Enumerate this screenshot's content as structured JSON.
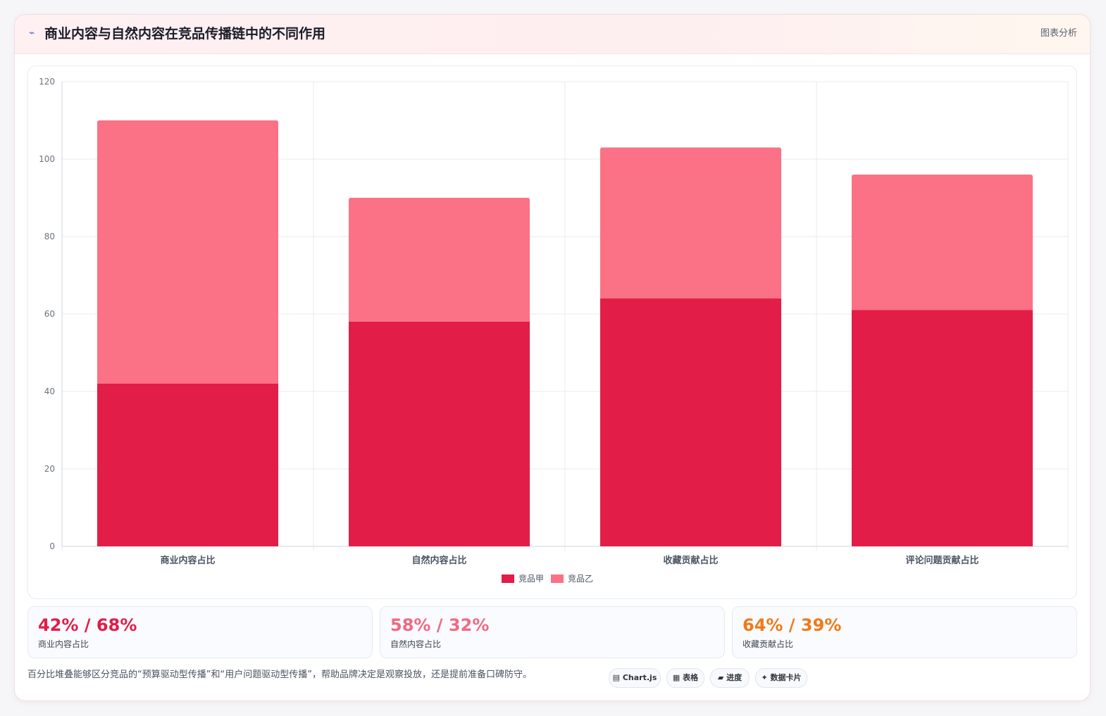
{
  "header": {
    "icon": "chart-line-icon",
    "title": "商业内容与自然内容在竞品传播链中的不同作用",
    "right_label": "图表分析"
  },
  "chart_data": {
    "type": "bar",
    "stacked": true,
    "categories": [
      "商业内容占比",
      "自然内容占比",
      "收藏贡献占比",
      "评论问题贡献占比"
    ],
    "series": [
      {
        "name": "竞品甲",
        "color": "#e11d48",
        "values": [
          42,
          58,
          64,
          61
        ]
      },
      {
        "name": "竞品乙",
        "color": "#fb7185",
        "values": [
          68,
          32,
          39,
          35
        ]
      }
    ],
    "ylim": [
      0,
      120
    ],
    "yticks": [
      0,
      20,
      40,
      60,
      80,
      100,
      120
    ],
    "grid": true,
    "legend": "bottom"
  },
  "stats": [
    {
      "value": "42% / 68%",
      "label": "商业内容占比",
      "color": "#e11d48"
    },
    {
      "value": "58% / 32%",
      "label": "自然内容占比",
      "color": "#f06a82"
    },
    {
      "value": "64% / 39%",
      "label": "收藏贡献占比",
      "color": "#ef7a1a"
    }
  ],
  "footer": {
    "text": "百分比堆叠能够区分竞品的“预算驱动型传播”和“用户问题驱动型传播”，帮助品牌决定是观察投放，还是提前准备口碑防守。",
    "pills": [
      {
        "icon": "▤",
        "label": "Chart.js"
      },
      {
        "icon": "▦",
        "label": "表格"
      },
      {
        "icon": "▰",
        "label": "进度"
      },
      {
        "icon": "✦",
        "label": "数据卡片"
      }
    ]
  }
}
